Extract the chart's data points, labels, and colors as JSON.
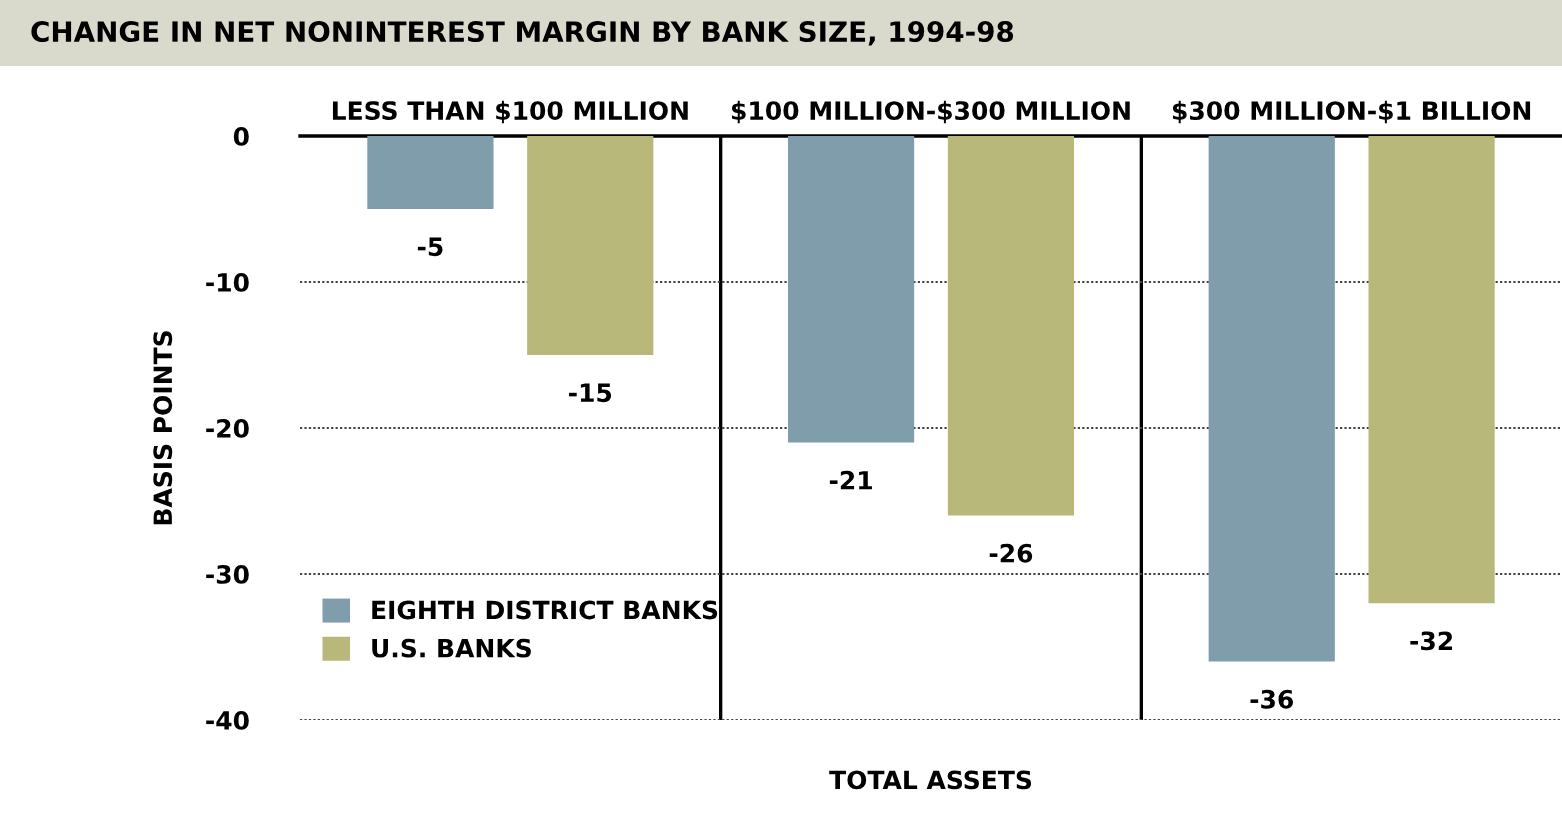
{
  "chart_data": {
    "type": "bar",
    "title": "CHANGE IN NET NONINTEREST MARGIN BY BANK SIZE, 1994-98",
    "xlabel": "TOTAL ASSETS",
    "ylabel": "BASIS POINTS",
    "categories": [
      "LESS THAN $100 MILLION",
      "$100 MILLION-$300 MILLION",
      "$300 MILLION-$1 BILLION"
    ],
    "series": [
      {
        "name": "EIGHTH DISTRICT BANKS",
        "color": "#7f9dab",
        "values": [
          -5,
          -21,
          -36
        ]
      },
      {
        "name": "U.S. BANKS",
        "color": "#b8b87a",
        "values": [
          -15,
          -26,
          -32
        ]
      }
    ],
    "ylim": [
      -40,
      0
    ],
    "yticks": [
      0,
      -10,
      -20,
      -30,
      -40
    ],
    "grid": "y",
    "legend": "bottom left",
    "data_labels": true
  }
}
